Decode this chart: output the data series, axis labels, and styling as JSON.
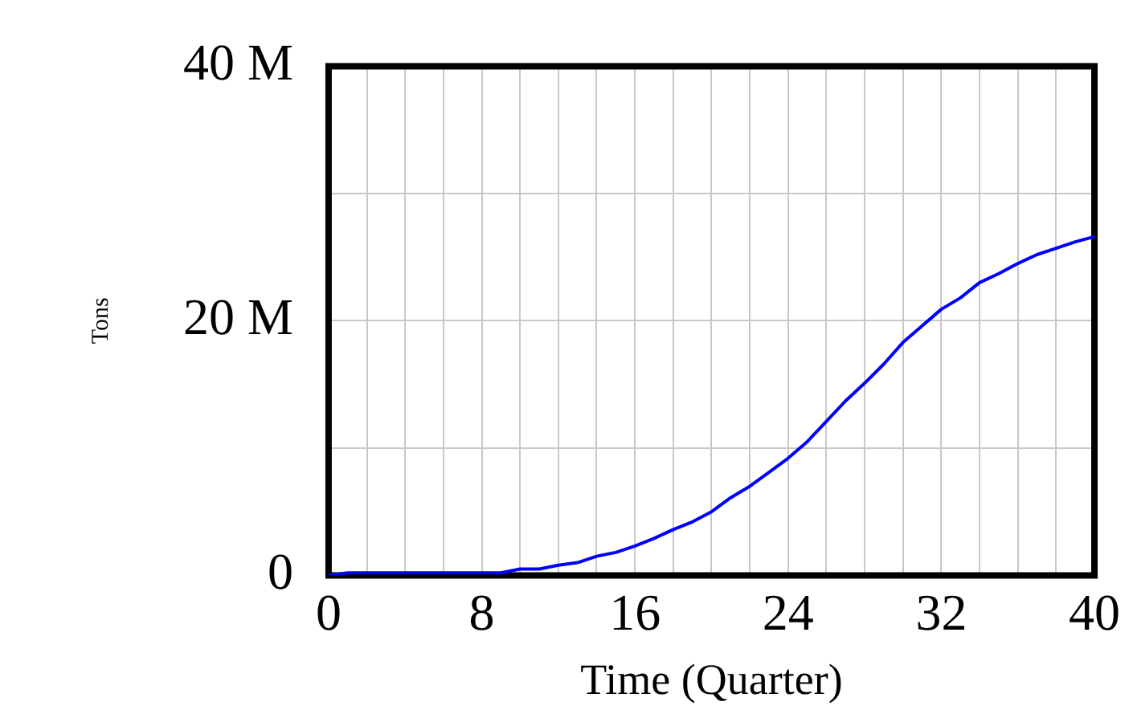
{
  "chart_data": {
    "type": "line",
    "xlabel": "Time (Quarter)",
    "ylabel": "Tons",
    "x": [
      0,
      1,
      2,
      3,
      4,
      5,
      6,
      7,
      8,
      9,
      10,
      11,
      12,
      13,
      14,
      15,
      16,
      17,
      18,
      19,
      20,
      21,
      22,
      23,
      24,
      25,
      26,
      27,
      28,
      29,
      30,
      31,
      32,
      33,
      34,
      35,
      36,
      37,
      38,
      39,
      40
    ],
    "series": [
      {
        "color": "#0000ff",
        "values": [
          0,
          200000,
          200000,
          200000,
          200000,
          200000,
          200000,
          200000,
          200000,
          200000,
          500000,
          500000,
          800000,
          1000000,
          1500000,
          1800000,
          2300000,
          2900000,
          3600000,
          4200000,
          5000000,
          6100000,
          7000000,
          8100000,
          9200000,
          10500000,
          12100000,
          13700000,
          15100000,
          16600000,
          18300000,
          19600000,
          20900000,
          21800000,
          23000000,
          23700000,
          24500000,
          25200000,
          25700000,
          26200000,
          26600000
        ]
      }
    ],
    "xlim": [
      0,
      40
    ],
    "xticks": [
      0,
      {
        "value": 2,
        "label": null
      },
      {
        "value": 4,
        "label": null
      },
      {
        "value": 6,
        "label": null
      },
      8,
      {
        "value": 10,
        "label": null
      },
      {
        "value": 12,
        "label": null
      },
      {
        "value": 14,
        "label": null
      },
      16,
      {
        "value": 18,
        "label": null
      },
      {
        "value": 20,
        "label": null
      },
      {
        "value": 22,
        "label": null
      },
      24,
      {
        "value": 26,
        "label": null
      },
      {
        "value": 28,
        "label": null
      },
      {
        "value": 30,
        "label": null
      },
      32,
      {
        "value": 34,
        "label": null
      },
      {
        "value": 36,
        "label": null
      },
      {
        "value": 38,
        "label": null
      },
      40
    ],
    "ylim": [
      0,
      40000000
    ],
    "yticks": [
      {
        "value": 0,
        "label": "0"
      },
      {
        "value": 10000000,
        "label": null
      },
      {
        "value": 20000000,
        "label": "20 M"
      },
      {
        "value": 30000000,
        "label": null
      },
      {
        "value": 40000000,
        "label": "40 M"
      }
    ],
    "grid": true,
    "legend": false,
    "marker": "none",
    "line_style": "solid"
  }
}
